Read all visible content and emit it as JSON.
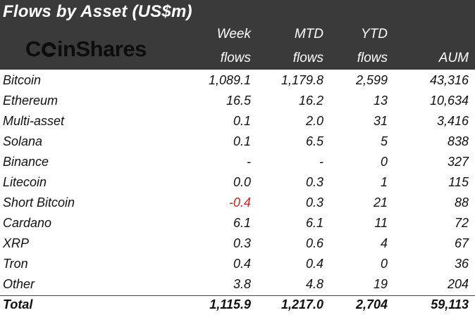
{
  "title": "Flows by Asset (US$m)",
  "logo_text_before": "C",
  "logo_text_after": "inShares",
  "columns": [
    {
      "line1": "Week",
      "line2": "flows"
    },
    {
      "line1": "MTD",
      "line2": "flows"
    },
    {
      "line1": "YTD",
      "line2": "flows"
    },
    {
      "line1": "",
      "line2": "AUM"
    }
  ],
  "rows": [
    {
      "name": "Bitcoin",
      "week": "1,089.1",
      "mtd": "1,179.8",
      "ytd": "2,599",
      "aum": "43,316"
    },
    {
      "name": "Ethereum",
      "week": "16.5",
      "mtd": "16.2",
      "ytd": "13",
      "aum": "10,634"
    },
    {
      "name": "Multi-asset",
      "week": "0.1",
      "mtd": "2.0",
      "ytd": "31",
      "aum": "3,416"
    },
    {
      "name": "Solana",
      "week": "0.1",
      "mtd": "6.5",
      "ytd": "5",
      "aum": "838"
    },
    {
      "name": "Binance",
      "week": "-",
      "mtd": "-",
      "ytd": "0",
      "aum": "327"
    },
    {
      "name": "Litecoin",
      "week": "0.0",
      "mtd": "0.3",
      "ytd": "1",
      "aum": "115"
    },
    {
      "name": "Short Bitcoin",
      "week": "-0.4",
      "mtd": "0.3",
      "ytd": "21",
      "aum": "88"
    },
    {
      "name": "Cardano",
      "week": "6.1",
      "mtd": "6.1",
      "ytd": "11",
      "aum": "72"
    },
    {
      "name": "XRP",
      "week": "0.3",
      "mtd": "0.6",
      "ytd": "4",
      "aum": "67"
    },
    {
      "name": "Tron",
      "week": "0.4",
      "mtd": "0.4",
      "ytd": "0",
      "aum": "36"
    },
    {
      "name": "Other",
      "week": "3.8",
      "mtd": "4.8",
      "ytd": "19",
      "aum": "204"
    }
  ],
  "total": {
    "name": "Total",
    "week": "1,115.9",
    "mtd": "1,217.0",
    "ytd": "2,704",
    "aum": "59,113"
  },
  "colors": {
    "header_bg": "#3a3a3a",
    "negative": "#d11f1f"
  }
}
